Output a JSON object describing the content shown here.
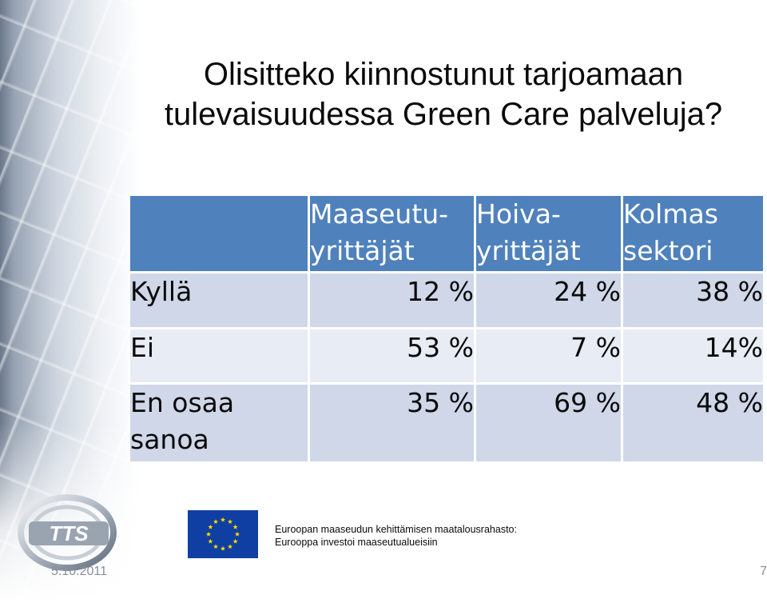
{
  "slide": {
    "title_line1": "Olisitteko kiinnostunut tarjoamaan",
    "title_line2": "tulevaisuudessa Green Care palveluja?"
  },
  "table": {
    "headers": [
      {
        "line1": "Maaseutu-",
        "line2": "yrittäjät"
      },
      {
        "line1": "Hoiva-",
        "line2": "yrittäjät"
      },
      {
        "line1": "Kolmas",
        "line2": "sektori"
      }
    ],
    "rows": [
      {
        "label_line1": "Kyllä",
        "label_line2": "",
        "values": [
          "12 %",
          "24 %",
          "38 %"
        ]
      },
      {
        "label_line1": "Ei",
        "label_line2": "",
        "values": [
          "53 %",
          "7 %",
          "14%"
        ]
      },
      {
        "label_line1": "En osaa",
        "label_line2": "sanoa",
        "values": [
          "35 %",
          "69 %",
          "48 %"
        ]
      }
    ]
  },
  "footer": {
    "logo_text": "TTS",
    "fund_line1": "Euroopan maaseudun kehittämisen maatalousrahasto:",
    "fund_line2": "Eurooppa investoi maaseutualueisiin",
    "date": "5.10.2011",
    "page_number": "7"
  },
  "colors": {
    "header_blue": "#4f81bd",
    "row_dark": "#cfd7e8",
    "row_light": "#e8ecf4",
    "eu_blue": "#0f3fa2",
    "eu_star": "#ffdd00"
  }
}
